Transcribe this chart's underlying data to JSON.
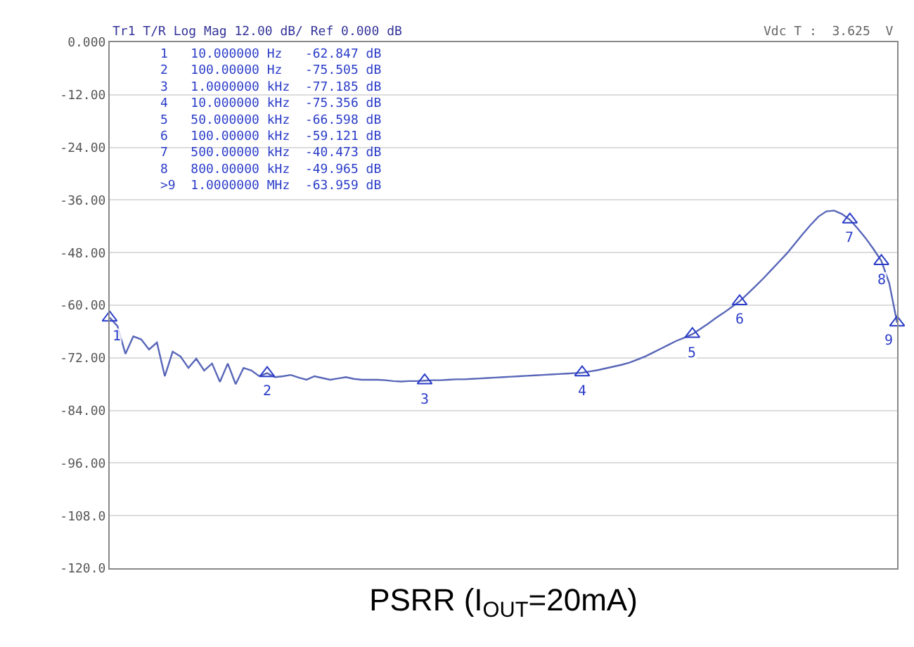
{
  "chart_data": {
    "type": "line",
    "xlabel": "PSRR (I$_{OUT}$=20mA)",
    "annotations": [
      "Tr1 T/R Log Mag 12.00 dB/ Ref 0.000 dB",
      "Vdc T :  3.625  V",
      "1   10.000000 Hz   -62.847 dB\n2   100.00000 Hz   -75.505 dB\n3   1.0000000 kHz  -77.185 dB\n4   10.000000 kHz  -75.356 dB\n5   50.000000 kHz  -66.598 dB\n6   100.00000 kHz  -59.121 dB\n7   500.00000 kHz  -40.473 dB\n8   800.00000 kHz  -49.965 dB\n>9  1.0000000 MHz  -63.959 dB",
      {
        "text": "1",
        "y": -62.847
      },
      {
        "text": "2",
        "y": -75.505
      },
      {
        "text": "3",
        "y": -77.185
      },
      {
        "text": "4",
        "y": -75.356
      },
      {
        "text": "5",
        "y": -66.598
      },
      {
        "text": "6",
        "y": -59.121
      },
      {
        "text": "7",
        "y": -40.473
      },
      {
        "text": "8",
        "y": -49.965
      },
      {
        "text": "9",
        "y": -63.959
      }
    ],
    "grid": "y",
    "tick_labels": "y",
    "categories": [
      null,
      null,
      null,
      null,
      null,
      null,
      null,
      null,
      null,
      null,
      null,
      null,
      null,
      null,
      null,
      null,
      null,
      null,
      null,
      null,
      null,
      null,
      null,
      null,
      null,
      null,
      null,
      null,
      null,
      null,
      null,
      null,
      null,
      null,
      null,
      null,
      null,
      null,
      null,
      null,
      null,
      null,
      null,
      null,
      null,
      null,
      null,
      null,
      null,
      null,
      null,
      null,
      null,
      null,
      null,
      null,
      null,
      null,
      null,
      null,
      null,
      null,
      null,
      null,
      null,
      null,
      null,
      null,
      null,
      null,
      null,
      null,
      null,
      null,
      null,
      null,
      null,
      null,
      null,
      null,
      null,
      null,
      null,
      null,
      null,
      null,
      null,
      null,
      null,
      null,
      null,
      null,
      null,
      null,
      null,
      null,
      null,
      null,
      null,
      null,
      null
    ],
    "ylim": [
      -120,
      0
    ],
    "yticks": [
      {
        "value": 0,
        "label": "0.000"
      },
      {
        "value": -12,
        "label": "-12.00"
      },
      {
        "value": -24,
        "label": "-24.00"
      },
      {
        "value": -36,
        "label": "-36.00"
      },
      {
        "value": -48,
        "label": "-48.00"
      },
      {
        "value": -60,
        "label": "-60.00"
      },
      {
        "value": -72,
        "label": "-72.00"
      },
      {
        "value": -84,
        "label": "-84.00"
      },
      {
        "value": -96,
        "label": "-96.00"
      },
      {
        "value": -108,
        "label": "-108.0"
      },
      {
        "value": -120,
        "label": "-120.0"
      }
    ],
    "series": [
      {
        "color": "#5866b8",
        "marker": "none",
        "line_style": "solid",
        "values": [
          -62.8,
          -64.8,
          -71.1,
          -67.1,
          -67.8,
          -70.1,
          -68.5,
          -76.2,
          -70.6,
          -71.7,
          -74.3,
          -72.2,
          -74.9,
          -73.3,
          -77.5,
          -73.3,
          -78,
          -74.3,
          -74.9,
          -76.2,
          -75.5,
          -76.4,
          -76.2,
          -75.9,
          -76.5,
          -77,
          -76.2,
          -76.6,
          -77,
          -76.7,
          -76.4,
          -76.8,
          -77,
          -77,
          -77,
          -77.1,
          -77.3,
          -77.4,
          -77.3,
          -77.3,
          -77.2,
          -77.1,
          -77.1,
          -77,
          -76.9,
          -76.9,
          -76.8,
          -76.7,
          -76.6,
          -76.5,
          -76.4,
          -76.3,
          -76.2,
          -76.1,
          -76,
          -75.9,
          -75.8,
          -75.7,
          -75.6,
          -75.5,
          -75.4,
          -75.1,
          -74.8,
          -74.4,
          -74,
          -73.6,
          -73.1,
          -72.4,
          -71.7,
          -70.8,
          -69.9,
          -69,
          -68.1,
          -67.4,
          -66.6,
          -65.4,
          -64.2,
          -62.9,
          -61.7,
          -60.4,
          -59.1,
          -57.4,
          -55.7,
          -53.9,
          -52,
          -50.1,
          -48.2,
          -46,
          -43.8,
          -41.7,
          -39.8,
          -38.6,
          -38.4,
          -39.2,
          -40.5,
          -42.5,
          -44.7,
          -47.2,
          -49.9,
          -55,
          -64
        ]
      },
      {
        "type": "scatter",
        "color": "#2a3cc8",
        "marker": "triangle",
        "values": [
          -62.847,
          null,
          null,
          null,
          null,
          null,
          null,
          null,
          null,
          null,
          null,
          null,
          null,
          null,
          null,
          null,
          null,
          null,
          null,
          null,
          -75.505,
          null,
          null,
          null,
          null,
          null,
          null,
          null,
          null,
          null,
          null,
          null,
          null,
          null,
          null,
          null,
          null,
          null,
          null,
          null,
          -77.185,
          null,
          null,
          null,
          null,
          null,
          null,
          null,
          null,
          null,
          null,
          null,
          null,
          null,
          null,
          null,
          null,
          null,
          null,
          null,
          -75.356,
          null,
          null,
          null,
          null,
          null,
          null,
          null,
          null,
          null,
          null,
          null,
          null,
          null,
          -66.598,
          null,
          null,
          null,
          null,
          null,
          -59.121,
          null,
          null,
          null,
          null,
          null,
          null,
          null,
          null,
          null,
          null,
          null,
          null,
          null,
          -40.473,
          null,
          null,
          null,
          -49.965,
          null,
          -63.959
        ]
      }
    ]
  }
}
